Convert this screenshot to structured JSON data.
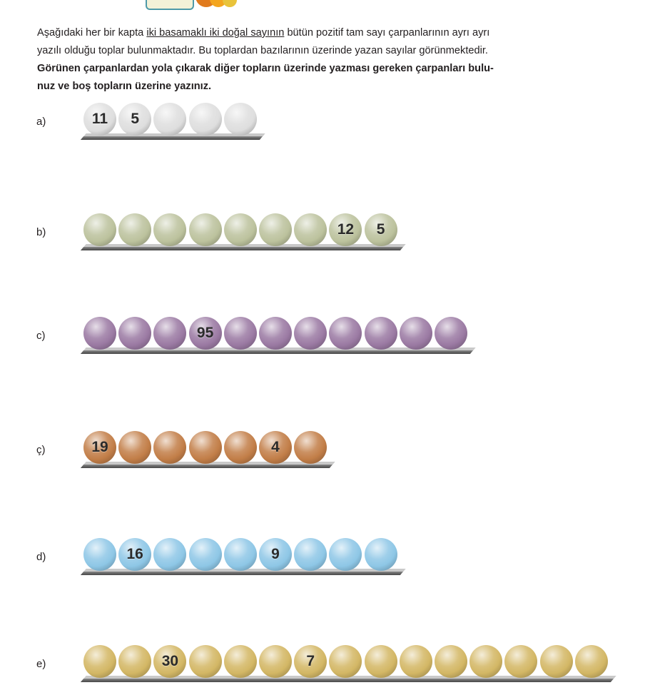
{
  "intro": {
    "line1_pre": "Aşağıdaki her bir kapta ",
    "line1_underlined": "iki basamaklı iki doğal sayının",
    "line1_post": " bütün pozitif tam sayı çarpanlarının ayrı ayrı",
    "line2": "yazılı olduğu toplar bulunmaktadır. Bu toplardan bazılarının üzerinde yazan sayılar görünmektedir.",
    "line3": "Görünen çarpanlardan yola çıkarak diğer topların üzerinde yazması gereken çarpanları bulu-",
    "line4": "nuz ve boş topların üzerine yazınız."
  },
  "colors": {
    "white": "#dedede",
    "sage": "#bcc29d",
    "purple": "#9b7aa3",
    "brown": "#c27e48",
    "blue": "#8ec7e6",
    "gold": "#d3b765"
  },
  "problems": [
    {
      "label": "a)",
      "color": "white",
      "balls": [
        "11",
        "5",
        "",
        "",
        ""
      ]
    },
    {
      "label": "b)",
      "color": "sage",
      "balls": [
        "",
        "",
        "",
        "",
        "",
        "",
        "",
        "12",
        "5"
      ]
    },
    {
      "label": "c)",
      "color": "purple",
      "balls": [
        "",
        "",
        "",
        "95",
        "",
        "",
        "",
        "",
        "",
        "",
        ""
      ]
    },
    {
      "label": "ç)",
      "color": "brown",
      "balls": [
        "19",
        "",
        "",
        "",
        "",
        "4",
        ""
      ]
    },
    {
      "label": "d)",
      "color": "blue",
      "balls": [
        "",
        "16",
        "",
        "",
        "",
        "9",
        "",
        "",
        ""
      ]
    },
    {
      "label": "e)",
      "color": "gold",
      "balls": [
        "",
        "",
        "30",
        "",
        "",
        "",
        "7",
        "",
        "",
        "",
        "",
        "",
        "",
        "",
        ""
      ]
    }
  ]
}
